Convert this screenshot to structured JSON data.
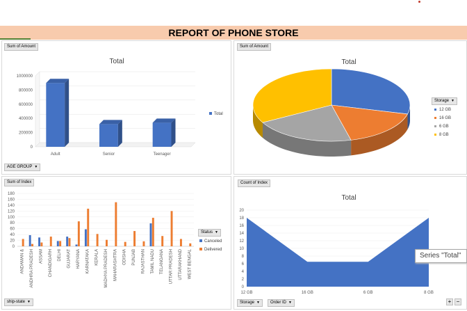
{
  "banner": {
    "title": "REPORT OF PHONE STORE"
  },
  "age_panel": {
    "value_button": "Sum of Amount",
    "title": "Total",
    "filter_button": "AGE GROUP",
    "legend": "Total",
    "chart_data": {
      "type": "bar",
      "categories": [
        "Adult",
        "Senior",
        "Teenager"
      ],
      "values": [
        900000,
        320000,
        340000
      ],
      "ylim": [
        0,
        1000000
      ],
      "yticks": [
        "1000000",
        "800000",
        "600000",
        "400000",
        "200000",
        "0"
      ],
      "color": "#4472c4"
    }
  },
  "storage_panel": {
    "value_button": "Sum of Amount",
    "title": "Total",
    "legend_button": "Storage",
    "chart_data": {
      "type": "pie",
      "categories": [
        "12 GB",
        "16 GB",
        "6 GB",
        "8 GB"
      ],
      "values": [
        29,
        17,
        21,
        33
      ],
      "colors": [
        "#4472c4",
        "#ed7d31",
        "#a5a5a5",
        "#ffc000"
      ]
    }
  },
  "state_panel": {
    "value_button": "Sum of Index",
    "filter_button": "ship-state",
    "legend_button": "Status",
    "chart_data": {
      "type": "bar",
      "categories": [
        "ANDAMAN &",
        "ANDHRA PRADESH",
        "ASSAM",
        "CHANDIGARH",
        "DELHI",
        "GUJARAT",
        "HARYANA",
        "KARNATAKA",
        "KERALA",
        "MADHYA PRADESH",
        "MAHARASHTRA",
        "ODISHA",
        "PUNJAB",
        "RAJASTHAN",
        "TAMIL NADU",
        "TELANGANA",
        "UTTAR PRADESH",
        "UTTARAKHAND",
        "WEST BENGAL"
      ],
      "series": [
        {
          "name": "Canceled",
          "values": [
            0,
            38,
            30,
            0,
            18,
            33,
            6,
            58,
            0,
            0,
            0,
            0,
            0,
            0,
            78,
            0,
            0,
            0,
            0
          ],
          "color": "#4472c4"
        },
        {
          "name": "Delivered",
          "values": [
            25,
            8,
            13,
            33,
            18,
            28,
            85,
            128,
            42,
            22,
            150,
            15,
            52,
            17,
            97,
            35,
            120,
            25,
            10
          ],
          "color": "#ed7d31"
        }
      ],
      "ylim": [
        0,
        180
      ],
      "yticks": [
        "180",
        "160",
        "140",
        "120",
        "100",
        "80",
        "60",
        "40",
        "20",
        "0"
      ]
    }
  },
  "index_panel": {
    "value_button": "Count of Index",
    "title": "Total",
    "filter_storage": "Storage",
    "filter_order": "Order ID",
    "tooltip": "Series \"Total\"",
    "plus": "+",
    "minus": "−",
    "chart_data": {
      "type": "area",
      "categories": [
        "12 GB",
        "16 GB",
        "6 GB",
        "8 GB"
      ],
      "values": [
        18,
        6.5,
        6.5,
        18
      ],
      "ylim": [
        0,
        20
      ],
      "yticks": [
        "20",
        "18",
        "16",
        "14",
        "12",
        "10",
        "8",
        "6",
        "4",
        "2",
        "0"
      ],
      "color": "#4472c4"
    }
  }
}
